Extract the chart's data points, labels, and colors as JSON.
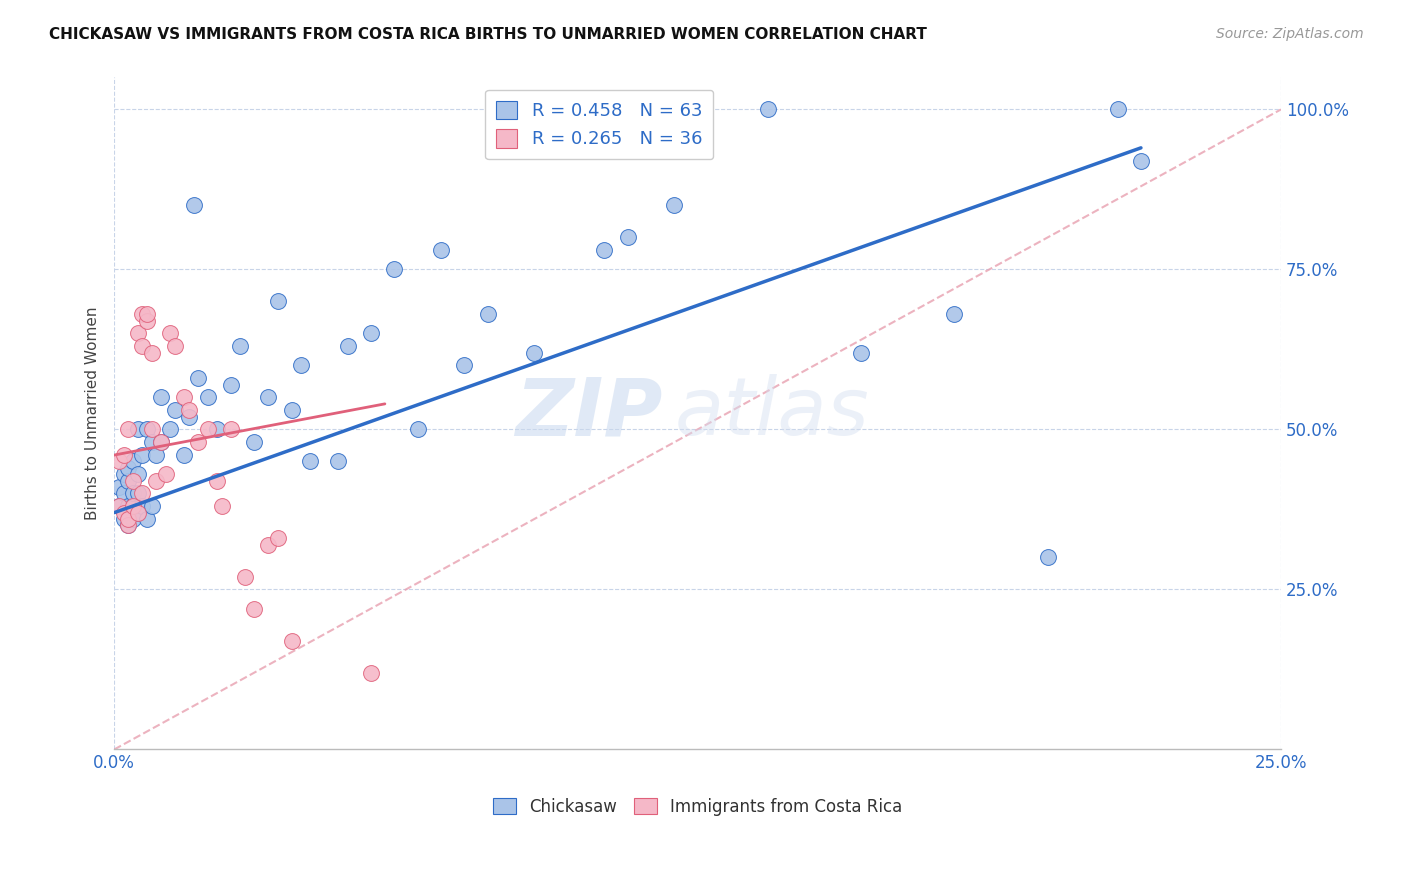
{
  "title": "CHICKASAW VS IMMIGRANTS FROM COSTA RICA BIRTHS TO UNMARRIED WOMEN CORRELATION CHART",
  "source": "Source: ZipAtlas.com",
  "ylabel": "Births to Unmarried Women",
  "xlim": [
    0.0,
    0.25
  ],
  "ylim": [
    0.0,
    1.05
  ],
  "ytick_values": [
    0.25,
    0.5,
    0.75,
    1.0
  ],
  "xtick_values": [
    0.0,
    0.25
  ],
  "xtick_labels": [
    "0.0%",
    "25.0%"
  ],
  "chickasaw_color": "#aac4e8",
  "costarica_color": "#f5b8c8",
  "trend_chickasaw_color": "#2e6cc7",
  "trend_costarica_color": "#e0607a",
  "diagonal_color": "#e8a0b0",
  "legend_R1": "R = 0.458",
  "legend_N1": "N = 63",
  "legend_R2": "R = 0.265",
  "legend_N2": "N = 36",
  "watermark_zip": "ZIP",
  "watermark_atlas": "atlas",
  "chickasaw_x": [
    0.001,
    0.001,
    0.002,
    0.002,
    0.002,
    0.003,
    0.003,
    0.003,
    0.003,
    0.003,
    0.004,
    0.004,
    0.004,
    0.004,
    0.005,
    0.005,
    0.005,
    0.005,
    0.006,
    0.006,
    0.007,
    0.007,
    0.008,
    0.008,
    0.009,
    0.01,
    0.01,
    0.012,
    0.013,
    0.015,
    0.016,
    0.017,
    0.018,
    0.02,
    0.022,
    0.025,
    0.027,
    0.03,
    0.033,
    0.035,
    0.038,
    0.04,
    0.042,
    0.048,
    0.05,
    0.055,
    0.06,
    0.065,
    0.07,
    0.075,
    0.08,
    0.09,
    0.095,
    0.1,
    0.105,
    0.11,
    0.12,
    0.14,
    0.16,
    0.18,
    0.2,
    0.215,
    0.22
  ],
  "chickasaw_y": [
    0.38,
    0.41,
    0.36,
    0.4,
    0.43,
    0.35,
    0.37,
    0.38,
    0.42,
    0.44,
    0.36,
    0.38,
    0.4,
    0.45,
    0.37,
    0.4,
    0.43,
    0.5,
    0.38,
    0.46,
    0.36,
    0.5,
    0.38,
    0.48,
    0.46,
    0.48,
    0.55,
    0.5,
    0.53,
    0.46,
    0.52,
    0.85,
    0.58,
    0.55,
    0.5,
    0.57,
    0.63,
    0.48,
    0.55,
    0.7,
    0.53,
    0.6,
    0.45,
    0.45,
    0.63,
    0.65,
    0.75,
    0.5,
    0.78,
    0.6,
    0.68,
    0.62,
    1.0,
    1.0,
    0.78,
    0.8,
    0.85,
    1.0,
    0.62,
    0.68,
    0.3,
    1.0,
    0.92
  ],
  "costarica_x": [
    0.001,
    0.001,
    0.002,
    0.002,
    0.003,
    0.003,
    0.003,
    0.004,
    0.004,
    0.005,
    0.005,
    0.006,
    0.006,
    0.006,
    0.007,
    0.007,
    0.008,
    0.008,
    0.009,
    0.01,
    0.011,
    0.012,
    0.013,
    0.015,
    0.016,
    0.018,
    0.02,
    0.022,
    0.023,
    0.025,
    0.028,
    0.03,
    0.033,
    0.035,
    0.038,
    0.055
  ],
  "costarica_y": [
    0.38,
    0.45,
    0.37,
    0.46,
    0.35,
    0.36,
    0.5,
    0.38,
    0.42,
    0.37,
    0.65,
    0.4,
    0.63,
    0.68,
    0.67,
    0.68,
    0.62,
    0.5,
    0.42,
    0.48,
    0.43,
    0.65,
    0.63,
    0.55,
    0.53,
    0.48,
    0.5,
    0.42,
    0.38,
    0.5,
    0.27,
    0.22,
    0.32,
    0.33,
    0.17,
    0.12
  ],
  "trend_chick_x0": 0.0,
  "trend_chick_x1": 0.22,
  "trend_chick_y0": 0.37,
  "trend_chick_y1": 0.94,
  "trend_costa_x0": 0.0,
  "trend_costa_x1": 0.058,
  "trend_costa_y0": 0.46,
  "trend_costa_y1": 0.54
}
